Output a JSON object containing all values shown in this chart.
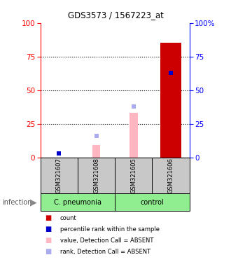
{
  "title": "GDS3573 / 1567223_at",
  "samples": [
    "GSM321607",
    "GSM321608",
    "GSM321605",
    "GSM321606"
  ],
  "count_values": [
    0,
    0,
    0,
    85
  ],
  "count_color": "#CC0000",
  "percentile_values": [
    3,
    0,
    0,
    63
  ],
  "percentile_color": "#0000CC",
  "value_absent_values": [
    0,
    9,
    33,
    0
  ],
  "value_absent_color": "#FFB6C1",
  "rank_absent_values": [
    0,
    16,
    38,
    0
  ],
  "rank_absent_color": "#AAAAEE",
  "ylim": [
    0,
    100
  ],
  "group_label": "infection",
  "group_positions": [
    [
      0,
      0.5,
      "C. pneumonia"
    ],
    [
      0.5,
      1.0,
      "control"
    ]
  ],
  "group_bg": "#90EE90",
  "sample_bg": "#C8C8C8",
  "legend_items": [
    {
      "label": "count",
      "color": "#CC0000"
    },
    {
      "label": "percentile rank within the sample",
      "color": "#0000CC"
    },
    {
      "label": "value, Detection Call = ABSENT",
      "color": "#FFB6C1"
    },
    {
      "label": "rank, Detection Call = ABSENT",
      "color": "#AAAAEE"
    }
  ]
}
